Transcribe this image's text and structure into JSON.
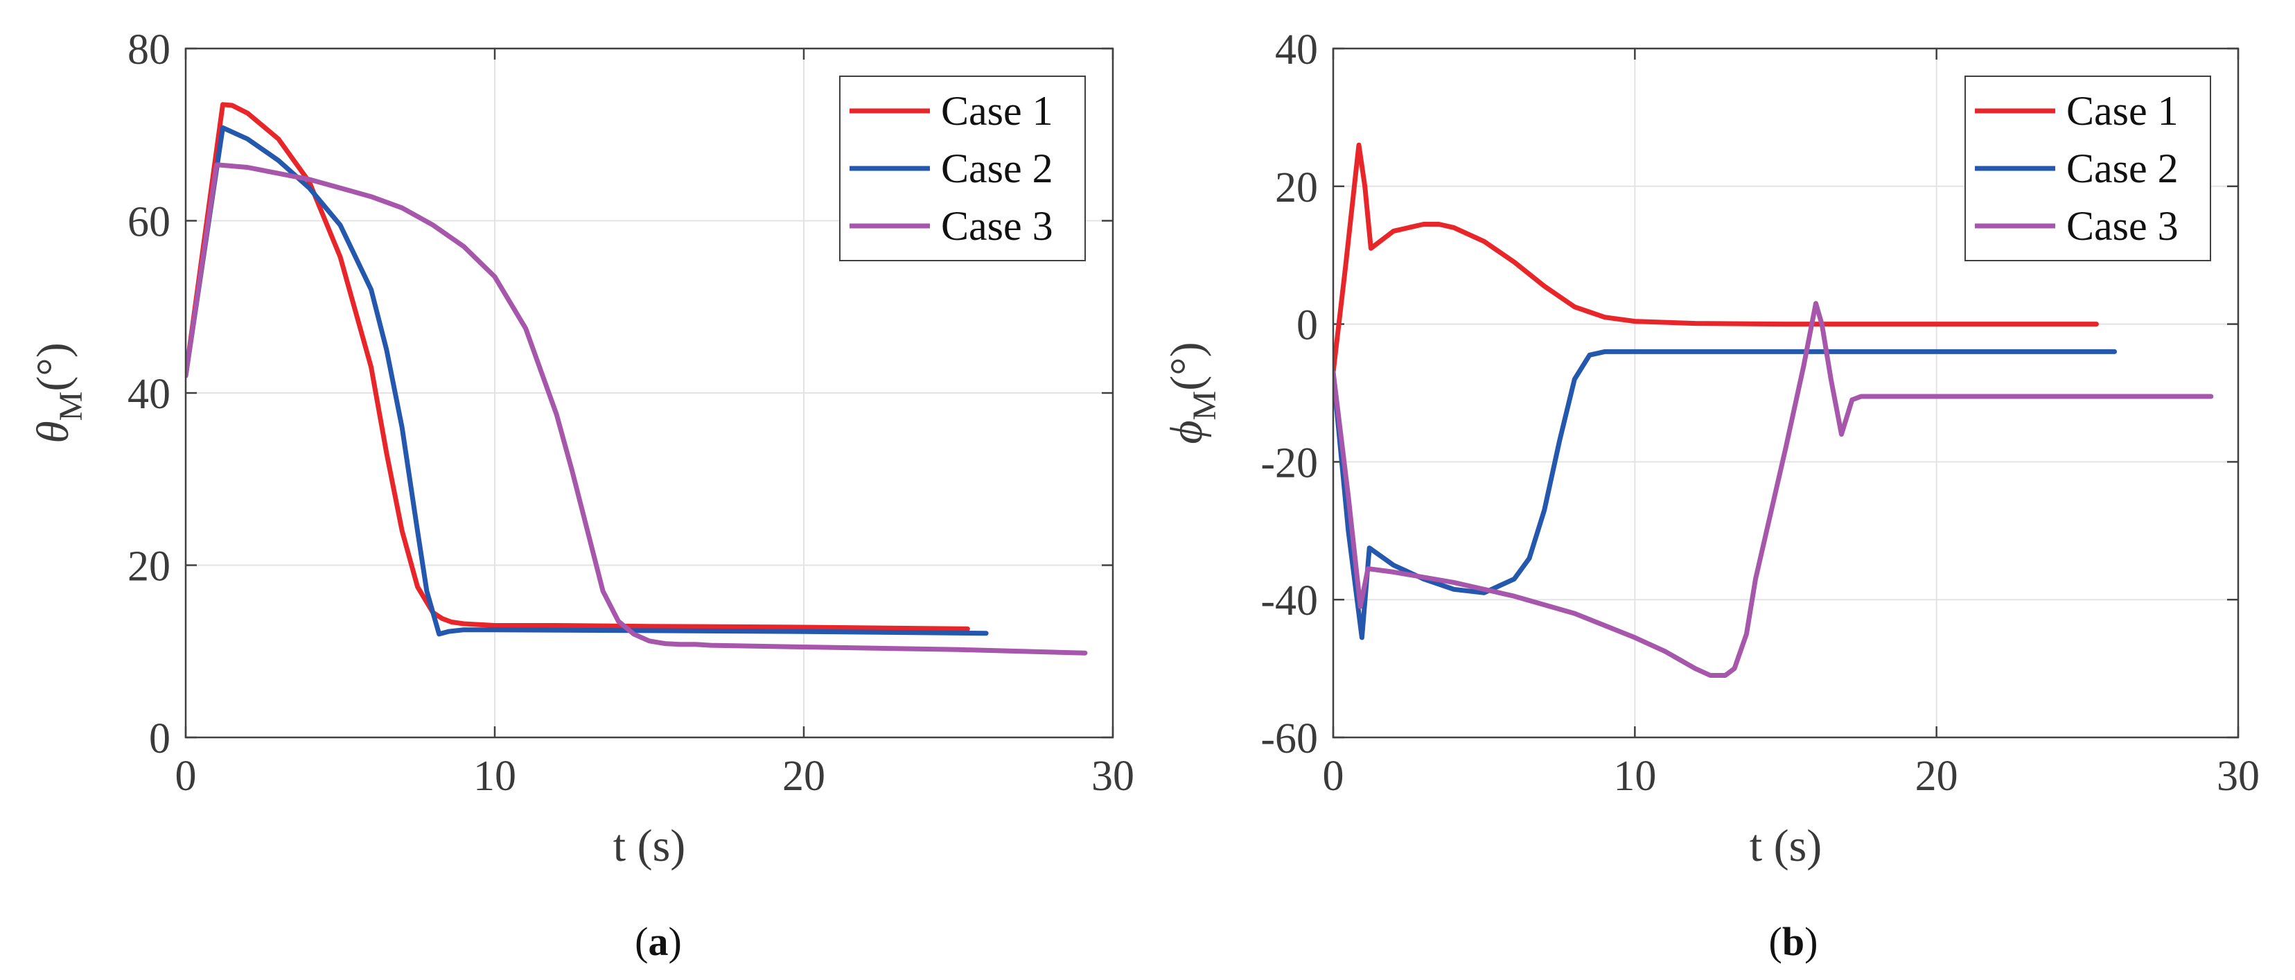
{
  "chart_data": [
    {
      "id": "a",
      "type": "line",
      "caption_label": "a",
      "xlabel": "t (s)",
      "ylabel_symbol": "θ",
      "ylabel_sub": "M",
      "ylabel_unit": "(°)",
      "xlim": [
        0,
        30
      ],
      "ylim": [
        0,
        80
      ],
      "xticks": [
        0,
        10,
        20,
        30
      ],
      "yticks": [
        0,
        20,
        40,
        60,
        80
      ],
      "xtick_labels": [
        "0",
        "10",
        "20",
        "30"
      ],
      "ytick_labels": [
        "0",
        "20",
        "40",
        "60",
        "80"
      ],
      "grid": true,
      "legend_position": "top-right",
      "series": [
        {
          "name": "Case 1",
          "color": "#e8262a",
          "x": [
            0,
            1.2,
            1.5,
            2,
            3,
            4,
            5,
            6,
            6.5,
            7,
            7.5,
            8,
            8.3,
            8.6,
            9,
            9.5,
            10,
            12,
            15,
            20,
            25.3
          ],
          "y": [
            42,
            73.5,
            73.4,
            72.5,
            69.5,
            64.5,
            55.8,
            43,
            33,
            24,
            17.5,
            14.5,
            13.8,
            13.4,
            13.2,
            13.1,
            13,
            13,
            12.9,
            12.8,
            12.6
          ]
        },
        {
          "name": "Case 2",
          "color": "#2457ae",
          "x": [
            0,
            1.2,
            2,
            3,
            4,
            5,
            6,
            6.5,
            7,
            7.5,
            7.8,
            8.2,
            8.5,
            9,
            10,
            15,
            20,
            25.9
          ],
          "y": [
            42,
            70.8,
            69.5,
            67,
            63.8,
            59.5,
            52,
            45,
            36,
            24,
            17,
            12,
            12.3,
            12.5,
            12.5,
            12.4,
            12.3,
            12.1
          ]
        },
        {
          "name": "Case 3",
          "color": "#a656ab",
          "x": [
            0,
            1,
            2,
            3,
            4,
            5,
            6,
            7,
            8,
            9,
            10,
            11,
            12,
            12.5,
            13,
            13.5,
            14,
            14.5,
            15,
            15.5,
            16,
            16.5,
            17,
            20,
            25,
            29.1
          ],
          "y": [
            42,
            66.5,
            66.2,
            65.5,
            64.8,
            63.8,
            62.8,
            61.5,
            59.5,
            57,
            53.5,
            47.5,
            37.5,
            31,
            24,
            17,
            13.5,
            12,
            11.2,
            10.9,
            10.8,
            10.8,
            10.7,
            10.5,
            10.2,
            9.8
          ]
        }
      ]
    },
    {
      "id": "b",
      "type": "line",
      "caption_label": "b",
      "xlabel": "t (s)",
      "ylabel_symbol": "ϕ",
      "ylabel_sub": "M",
      "ylabel_unit": "(°)",
      "xlim": [
        0,
        30
      ],
      "ylim": [
        -60,
        40
      ],
      "xticks": [
        0,
        10,
        20,
        30
      ],
      "yticks": [
        -60,
        -40,
        -20,
        0,
        20,
        40
      ],
      "xtick_labels": [
        "0",
        "10",
        "20",
        "30"
      ],
      "ytick_labels": [
        "-60",
        "-40",
        "-20",
        "0",
        "20",
        "40"
      ],
      "grid": true,
      "legend_position": "top-right",
      "series": [
        {
          "name": "Case 1",
          "color": "#e8262a",
          "x": [
            0,
            0.4,
            0.85,
            1.05,
            1.25,
            2,
            3,
            3.5,
            4,
            5,
            6,
            7,
            8,
            9,
            10,
            12,
            15,
            20,
            25.3
          ],
          "y": [
            -7,
            8,
            26,
            20,
            11,
            13.5,
            14.5,
            14.5,
            14,
            12,
            9,
            5.5,
            2.5,
            1,
            0.4,
            0.1,
            0,
            0,
            0
          ]
        },
        {
          "name": "Case 2",
          "color": "#2457ae",
          "x": [
            0,
            0.5,
            0.95,
            1.2,
            2,
            3,
            4,
            5,
            6,
            6.5,
            7,
            7.5,
            8,
            8.5,
            9,
            10,
            15,
            20,
            25.9
          ],
          "y": [
            -7,
            -30,
            -45.5,
            -32.5,
            -35,
            -37,
            -38.5,
            -39,
            -37,
            -34,
            -27,
            -17,
            -8,
            -4.5,
            -4,
            -4,
            -4,
            -4,
            -4
          ]
        },
        {
          "name": "Case 3",
          "color": "#a656ab",
          "x": [
            0,
            0.5,
            0.9,
            1.15,
            2,
            4,
            6,
            8,
            10,
            11,
            12,
            12.5,
            13,
            13.3,
            13.7,
            14,
            15,
            15.6,
            16,
            16.2,
            16.5,
            16.85,
            17.2,
            17.5,
            20,
            25,
            29.1
          ],
          "y": [
            -7,
            -25,
            -41,
            -35.5,
            -36,
            -37.5,
            -39.5,
            -42,
            -45.5,
            -47.5,
            -50,
            -51,
            -51,
            -50,
            -45,
            -37,
            -18,
            -6,
            3,
            0,
            -8,
            -16,
            -11,
            -10.5,
            -10.5,
            -10.5,
            -10.5
          ]
        }
      ]
    }
  ]
}
